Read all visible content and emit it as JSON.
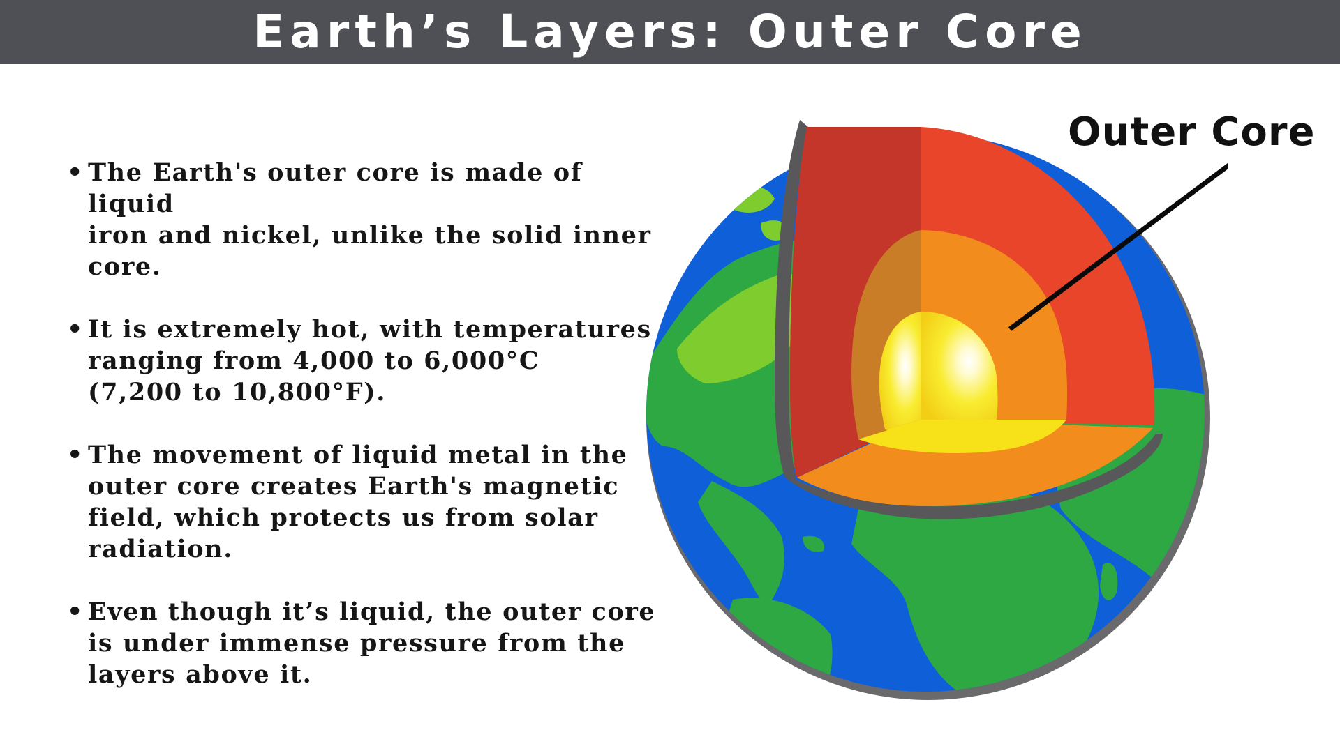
{
  "title": "Earth’s Layers: Outer Core",
  "bullet_marker": "•",
  "bullets": [
    {
      "lines": [
        "The Earth's outer core is made of liquid",
        "iron and nickel, unlike the solid inner",
        "core."
      ]
    },
    {
      "lines": [
        "It is extremely hot, with temperatures",
        "ranging from 4,000 to 6,000°C",
        "(7,200 to 10,800°F)."
      ]
    },
    {
      "lines": [
        "The movement of liquid metal in the",
        "outer core creates Earth's magnetic",
        "field, which protects us from solar",
        "radiation."
      ]
    },
    {
      "lines": [
        "Even though it’s liquid, the outer core",
        "is under immense pressure from the",
        "layers above it."
      ]
    }
  ],
  "diagram": {
    "callout_label": "Outer Core",
    "colors": {
      "title_bar": "#4f5055",
      "ocean": "#0f5fd8",
      "land": "#2ea843",
      "land_light": "#7fcc2e",
      "crust_outline": "#58585b",
      "mantle": "#e8452a",
      "mantle_shadow": "#c4362a",
      "outer_core": "#f28c1c",
      "outer_core_shadow": "#c97d26",
      "inner_core": "#f7e21a"
    }
  }
}
